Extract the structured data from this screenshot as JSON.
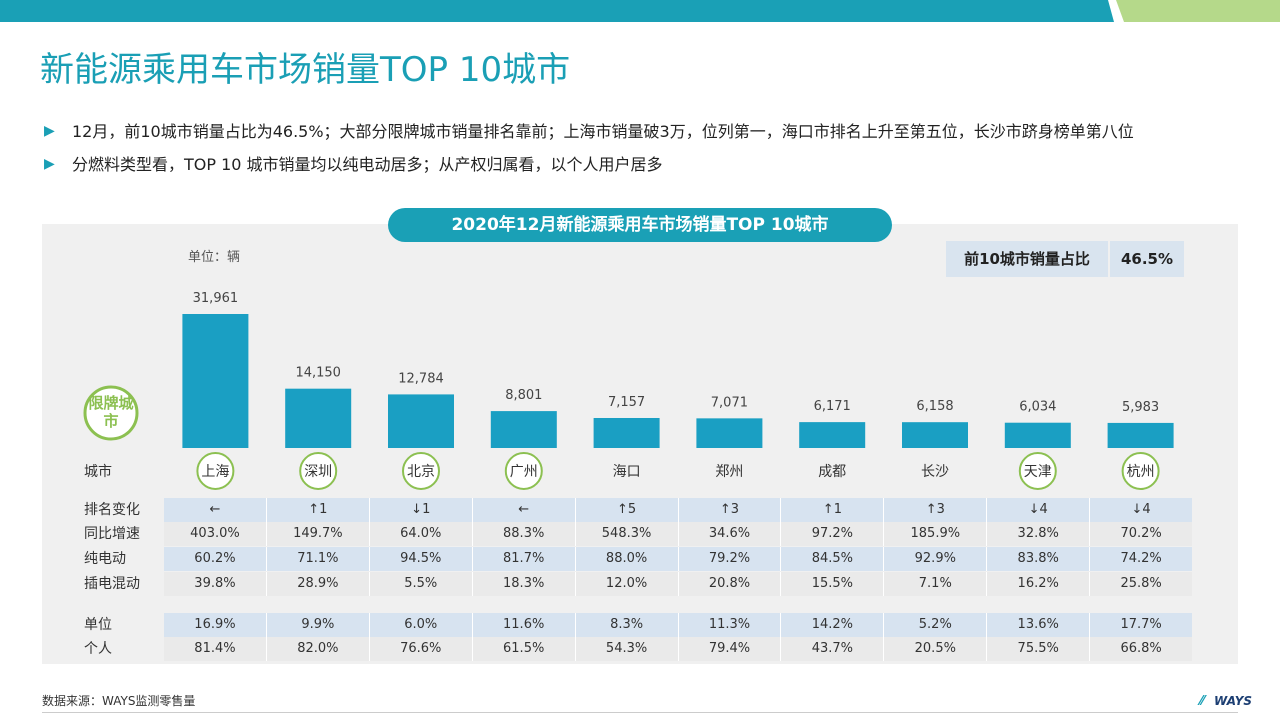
{
  "page": {
    "title": "新能源乘用车市场销量TOP 10城市",
    "bullets": [
      "12月，前10城市销量占比为46.5%；大部分限牌城市销量排名靠前；上海市销量破3万，位列第一，海口市排名上升至第五位，长沙市跻身榜单第八位",
      "分燃料类型看，TOP 10 城市销量均以纯电动居多；从产权归属看，以个人用户居多"
    ],
    "bullet_marker": "▶",
    "colors": {
      "accent": "#1aa0b6",
      "green": "#8cc051",
      "bar": "#1a9fc3"
    }
  },
  "panel": {
    "pill_title": "2020年12月新能源乘用车市场销量TOP 10城市",
    "unit": "单位：辆",
    "ratio_label": "前10城市销量占比",
    "ratio_value": "46.5%",
    "badge_text": "限牌城市",
    "x_row_label": "城市"
  },
  "chart_data": {
    "type": "bar",
    "categories": [
      "上海",
      "深圳",
      "北京",
      "广州",
      "海口",
      "郑州",
      "成都",
      "长沙",
      "天津",
      "杭州"
    ],
    "values": [
      31961,
      14150,
      12784,
      8801,
      7157,
      7071,
      6171,
      6158,
      6034,
      5983
    ],
    "value_labels": [
      "31,961",
      "14,150",
      "12,784",
      "8,801",
      "7,157",
      "7,071",
      "6,171",
      "6,158",
      "6,034",
      "5,983"
    ],
    "restricted_city": [
      true,
      true,
      true,
      true,
      false,
      false,
      false,
      false,
      true,
      true
    ],
    "ylabel": "",
    "ylim": [
      0,
      32000
    ]
  },
  "table": {
    "rows": [
      {
        "label": "排名变化",
        "style": "blue",
        "values": [
          "←",
          "↑1",
          "↓1",
          "←",
          "↑5",
          "↑3",
          "↑1",
          "↑3",
          "↓4",
          "↓4"
        ]
      },
      {
        "label": "同比增速",
        "style": "light",
        "values": [
          "403.0%",
          "149.7%",
          "64.0%",
          "88.3%",
          "548.3%",
          "34.6%",
          "97.2%",
          "185.9%",
          "32.8%",
          "70.2%"
        ]
      },
      {
        "label": "纯电动",
        "style": "blue",
        "values": [
          "60.2%",
          "71.1%",
          "94.5%",
          "81.7%",
          "88.0%",
          "79.2%",
          "84.5%",
          "92.9%",
          "83.8%",
          "74.2%"
        ]
      },
      {
        "label": "插电混动",
        "style": "light",
        "values": [
          "39.8%",
          "28.9%",
          "5.5%",
          "18.3%",
          "12.0%",
          "20.8%",
          "15.5%",
          "7.1%",
          "16.2%",
          "25.8%"
        ]
      },
      {
        "label": "单位",
        "style": "blue",
        "values": [
          "16.9%",
          "9.9%",
          "6.0%",
          "11.6%",
          "8.3%",
          "11.3%",
          "14.2%",
          "5.2%",
          "13.6%",
          "17.7%"
        ]
      },
      {
        "label": "个人",
        "style": "light",
        "values": [
          "81.4%",
          "82.0%",
          "76.6%",
          "61.5%",
          "54.3%",
          "79.4%",
          "43.7%",
          "20.5%",
          "75.5%",
          "66.8%"
        ]
      }
    ]
  },
  "footer": {
    "source": "数据来源：WAYS监测零售量",
    "logo": "WAYS"
  }
}
